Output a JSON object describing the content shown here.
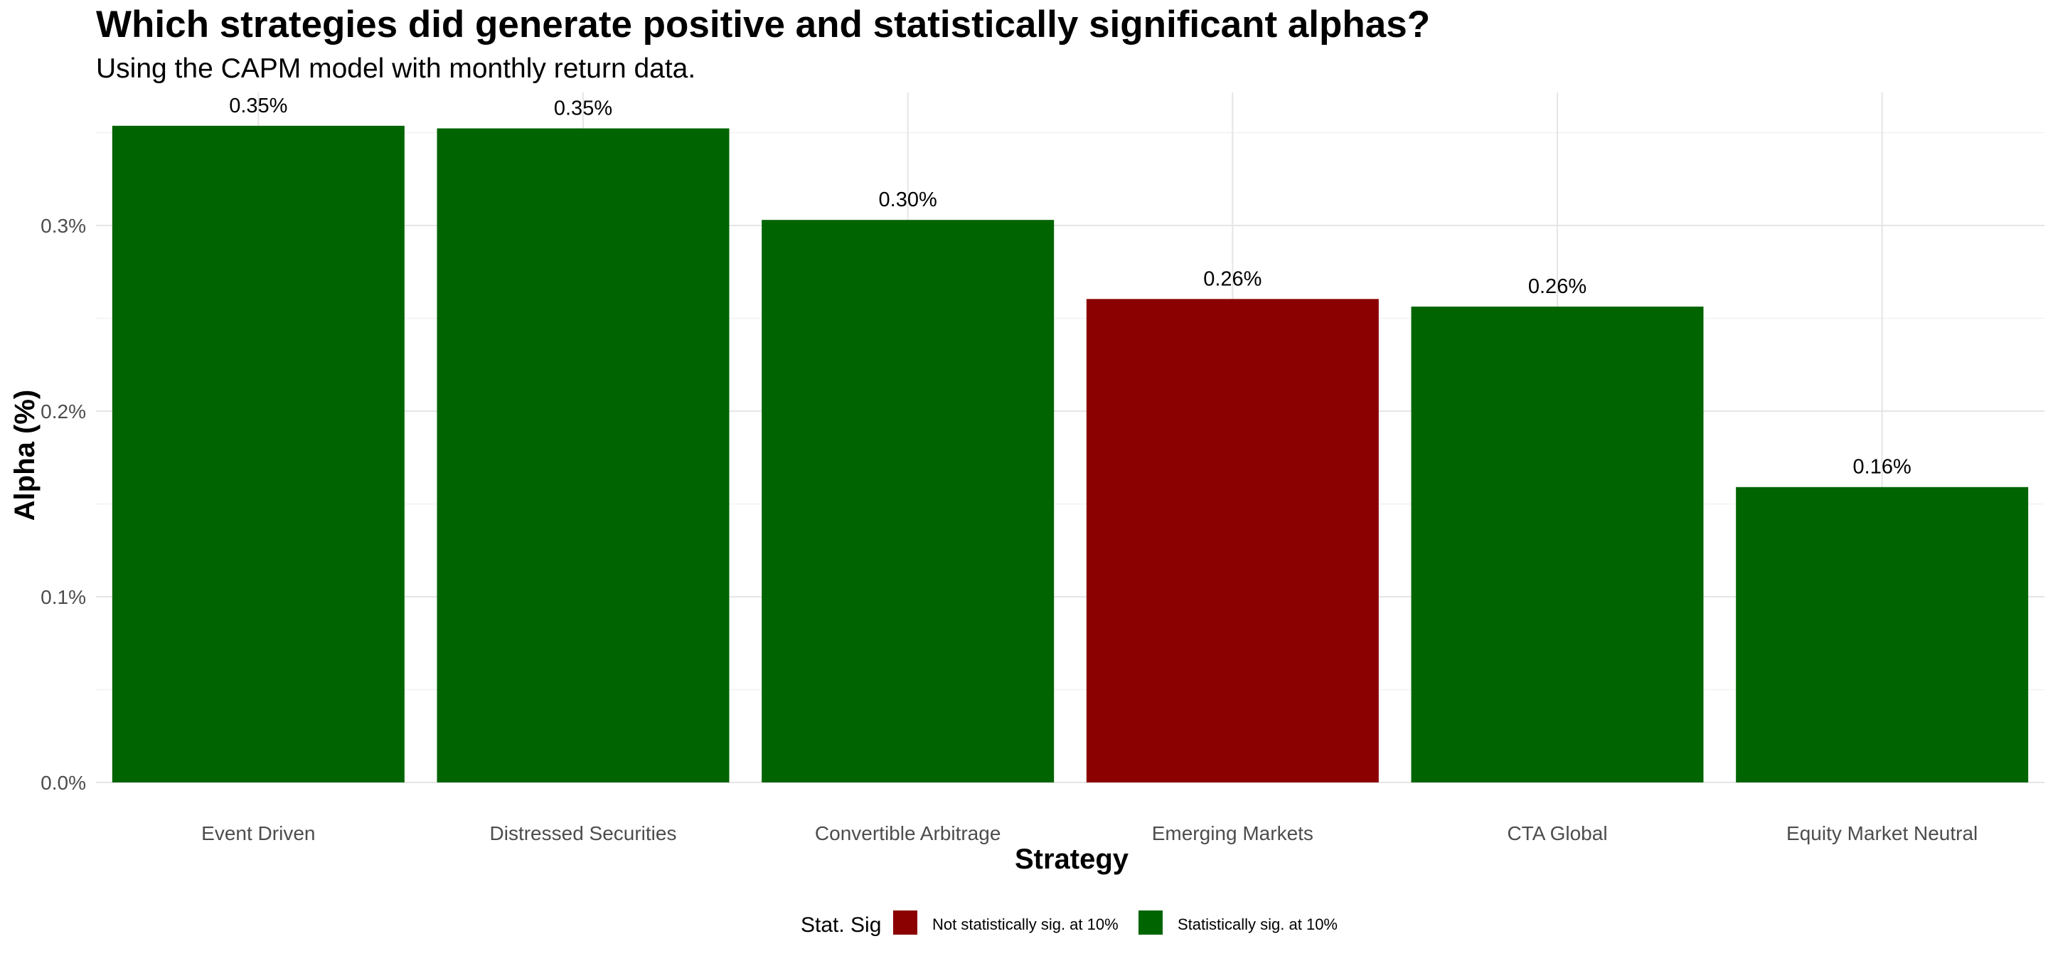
{
  "chart_data": {
    "type": "bar",
    "title": "Which strategies did generate positive and statistically significant alphas?",
    "subtitle": "Using the CAPM model with monthly return data.",
    "xlabel": "Strategy",
    "ylabel": "Alpha (%)",
    "ylim": [
      0,
      0.3575
    ],
    "y_ticks": [
      0.0,
      0.1,
      0.2,
      0.3
    ],
    "y_tick_labels": [
      "0.0%",
      "0.1%",
      "0.2%",
      "0.3%"
    ],
    "grid": true,
    "categories": [
      "Event Driven",
      "Distressed Securities",
      "Convertible Arbitrage",
      "Emerging Markets",
      "CTA Global",
      "Equity Market Neutral"
    ],
    "values": [
      0.3537,
      0.3523,
      0.303,
      0.2604,
      0.2563,
      0.1591
    ],
    "data_labels": [
      "0.35%",
      "0.35%",
      "0.30%",
      "0.26%",
      "0.26%",
      "0.16%"
    ],
    "significance": [
      "Statistically sig. at 10%",
      "Statistically sig. at 10%",
      "Statistically sig. at 10%",
      "Not statistically sig. at 10%",
      "Statistically sig. at 10%",
      "Statistically sig. at 10%"
    ],
    "legend": {
      "title": "Stat. Sig",
      "placement": "bottom",
      "entries": [
        {
          "name": "Not statistically sig. at 10%",
          "color": "#8B0000"
        },
        {
          "name": "Statistically sig. at 10%",
          "color": "#006400"
        }
      ]
    }
  }
}
